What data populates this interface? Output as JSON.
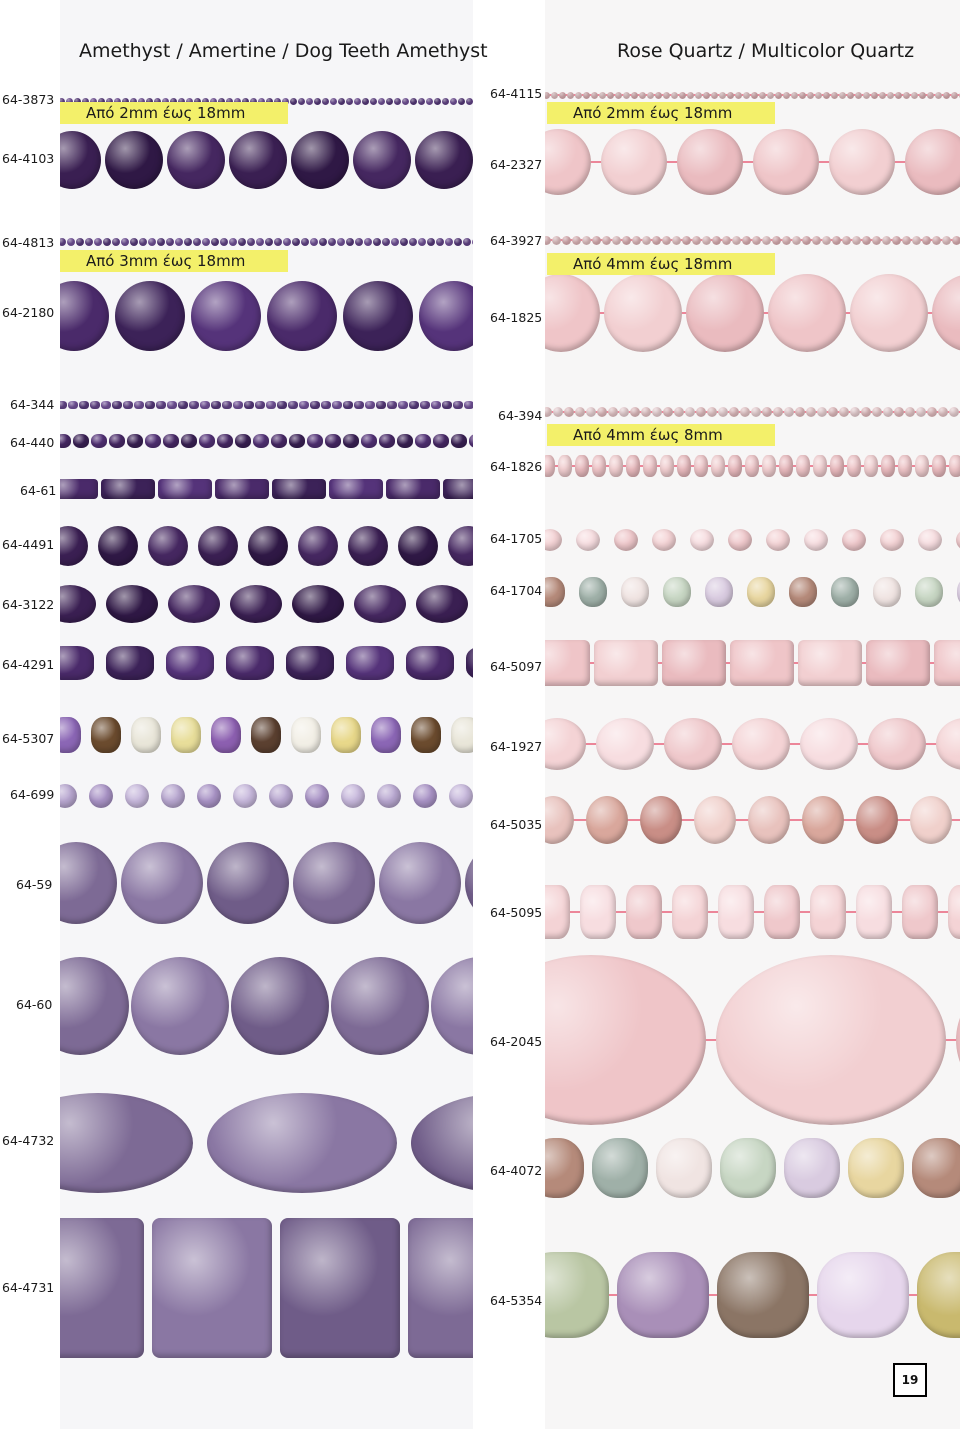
{
  "left": {
    "title": "Amethyst / Amertine / Dog Teeth Amethyst",
    "highlights": [
      "Από 2mm έως 18mm",
      "Από 3mm έως 18mm"
    ],
    "codes": [
      "64-3873",
      "64-4103",
      "64-4813",
      "64-2180",
      "64-344",
      "64-440",
      "64-61",
      "64-4491",
      "64-3122",
      "64-4291",
      "64-5307",
      "64-699",
      "64-59",
      "64-60",
      "64-4732",
      "64-4731"
    ]
  },
  "right": {
    "title": "Rose Quartz / Multicolor Quartz",
    "highlights": [
      "Από 2mm έως 18mm",
      "Από 4mm έως 18mm",
      "Από 4mm έως 8mm"
    ],
    "codes": [
      "64-4115",
      "64-2327",
      "64-3927",
      "64-1825",
      "64-394",
      "64-1826",
      "64-1705",
      "64-1704",
      "64-5097",
      "64-1927",
      "64-5035",
      "64-5095",
      "64-2045",
      "64-4072",
      "64-5354"
    ]
  },
  "page_number": "19",
  "colors": {
    "amethyst_dark": "#3a1f52",
    "amethyst_mid": "#6a4a8e",
    "amethyst_light": "#b7a6cf",
    "rose": "#efc5c8",
    "rose_string": "#e8607a",
    "highlight": "#f3f06a"
  }
}
